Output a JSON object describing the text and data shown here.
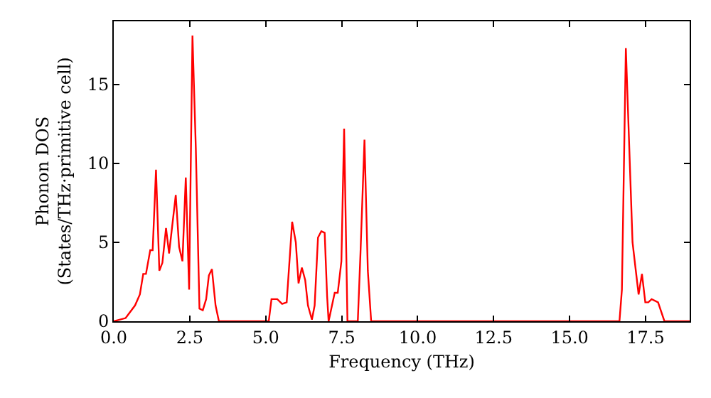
{
  "chart_data": {
    "type": "line",
    "xlabel": "Frequency (THz)",
    "ylabel": "Phonon DOS\n(States/THz·primitive cell)",
    "x": [
      0,
      0.39,
      0.7,
      0.86,
      0.97,
      1.06,
      1.2,
      1.28,
      1.39,
      1.5,
      1.6,
      1.72,
      1.82,
      2.04,
      2.15,
      2.26,
      2.37,
      2.48,
      2.59,
      2.7,
      2.82,
      2.93,
      3.04,
      3.13,
      3.23,
      3.35,
      3.46,
      5.1,
      5.19,
      5.38,
      5.54,
      5.69,
      5.87,
      5.99,
      6.08,
      6.19,
      6.3,
      6.39,
      6.52,
      6.61,
      6.72,
      6.83,
      6.94,
      7.02,
      7.07,
      7.27,
      7.37,
      7.49,
      7.58,
      7.69,
      8.03,
      8.12,
      8.25,
      8.36,
      8.47,
      16.64,
      16.72,
      16.85,
      17.07,
      17.16,
      17.27,
      17.38,
      17.49,
      17.59,
      17.7,
      17.91,
      18.12,
      18.95
    ],
    "series": [
      {
        "color": "#ff0000",
        "values": [
          0,
          0.2,
          1.0,
          1.7,
          3.0,
          3.0,
          4.5,
          4.5,
          9.6,
          3.2,
          3.7,
          5.9,
          4.3,
          8.0,
          4.7,
          3.8,
          9.1,
          2.0,
          18.1,
          11,
          0.8,
          0.7,
          1.4,
          2.9,
          3.3,
          1.0,
          0,
          0,
          1.4,
          1.4,
          1.1,
          1.2,
          6.3,
          5.0,
          2.4,
          3.4,
          2.6,
          1.0,
          0.1,
          1.0,
          5.3,
          5.7,
          5.6,
          1.6,
          0,
          1.8,
          1.8,
          3.8,
          12.2,
          0,
          0,
          4.4,
          11.5,
          3.2,
          0,
          0,
          2.0,
          17.3,
          5.0,
          3.5,
          1.7,
          3.0,
          1.2,
          1.2,
          1.4,
          1.2,
          0,
          0
        ]
      }
    ],
    "xlim": [
      0,
      18.95
    ],
    "ylim": [
      0,
      19
    ],
    "xticks": [
      {
        "value": 0,
        "label": "0.0"
      },
      {
        "value": 2.5,
        "label": "2.5"
      },
      {
        "value": 5,
        "label": "5.0"
      },
      {
        "value": 7.5,
        "label": "7.5"
      },
      {
        "value": 10,
        "label": "10.0"
      },
      {
        "value": 12.5,
        "label": "12.5"
      },
      {
        "value": 15,
        "label": "15.0"
      },
      {
        "value": 17.5,
        "label": "17.5"
      }
    ],
    "yticks": [
      0,
      5,
      10,
      15
    ],
    "marker": "none",
    "line_style": "solid"
  }
}
